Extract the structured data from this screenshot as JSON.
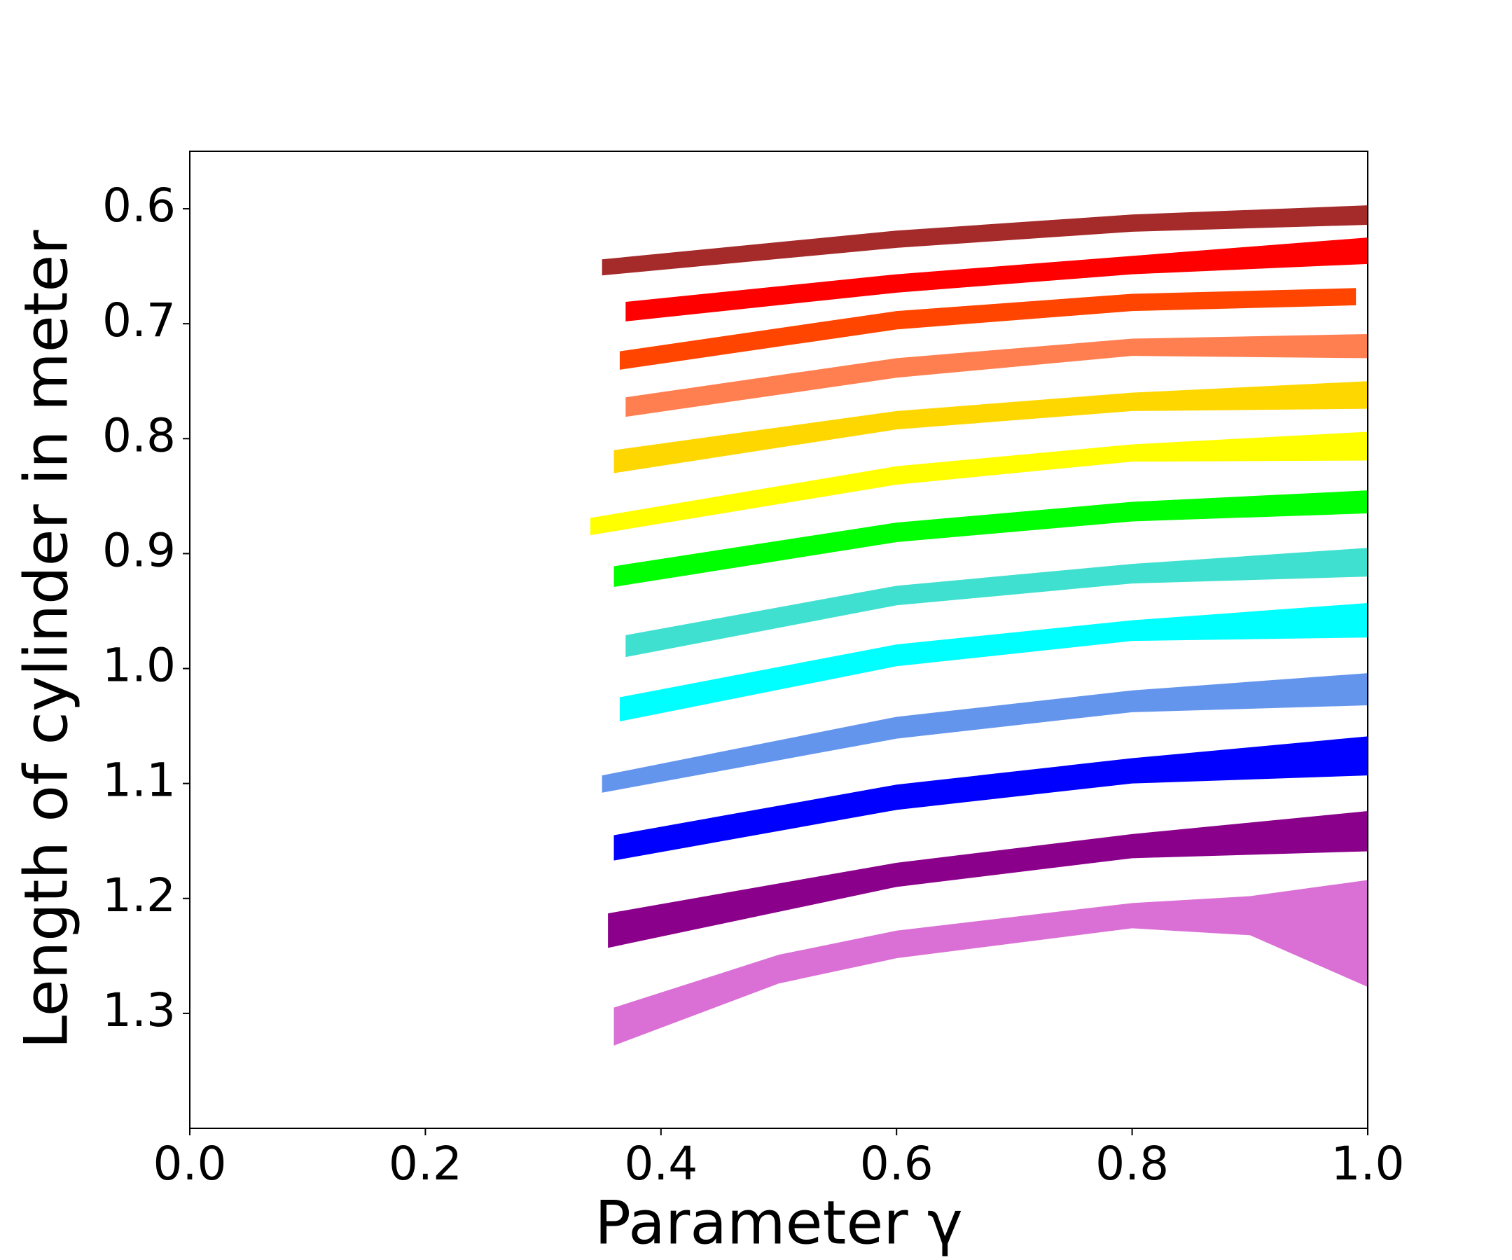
{
  "chart_data": {
    "type": "band",
    "xlabel": "Parameter γ",
    "ylabel": "Length of cylinder in meter",
    "xlim": [
      0,
      1
    ],
    "ylim": [
      1.4,
      0.55
    ],
    "xticks": [
      {
        "value": 0,
        "label": "0.0"
      },
      0.2,
      0.4,
      0.6,
      0.8,
      {
        "value": 1,
        "label": "1.0"
      }
    ],
    "yticks": [
      0.6,
      0.7,
      0.8,
      0.9,
      {
        "value": 1,
        "label": "1.0"
      },
      1.1,
      1.2,
      1.3
    ],
    "series": [
      {
        "color": "#a52a2a",
        "x": [
          0.35,
          0.6,
          0.8,
          1.0
        ],
        "top": [
          0.644,
          0.619,
          0.605,
          0.597
        ],
        "bottom": [
          0.658,
          0.634,
          0.62,
          0.614
        ]
      },
      {
        "color": "#ff0000",
        "x": [
          0.37,
          0.6,
          0.8,
          1.0
        ],
        "top": [
          0.681,
          0.657,
          0.641,
          0.625
        ],
        "bottom": [
          0.698,
          0.673,
          0.657,
          0.648
        ]
      },
      {
        "color": "#ff4500",
        "x": [
          0.365,
          0.6,
          0.8,
          0.99
        ],
        "top": [
          0.724,
          0.689,
          0.674,
          0.669
        ],
        "bottom": [
          0.74,
          0.705,
          0.689,
          0.684
        ]
      },
      {
        "color": "#ff7f50",
        "x": [
          0.37,
          0.6,
          0.8,
          1.0
        ],
        "top": [
          0.764,
          0.73,
          0.713,
          0.709
        ],
        "bottom": [
          0.781,
          0.747,
          0.728,
          0.73
        ]
      },
      {
        "color": "#ffd700",
        "x": [
          0.36,
          0.6,
          0.8,
          1.0
        ],
        "top": [
          0.81,
          0.776,
          0.76,
          0.75
        ],
        "bottom": [
          0.83,
          0.792,
          0.776,
          0.774
        ]
      },
      {
        "color": "#ffff00",
        "x": [
          0.34,
          0.6,
          0.8,
          1.0
        ],
        "top": [
          0.869,
          0.824,
          0.805,
          0.794
        ],
        "bottom": [
          0.884,
          0.84,
          0.82,
          0.819
        ]
      },
      {
        "color": "#00ff00",
        "x": [
          0.36,
          0.6,
          0.8,
          1.0
        ],
        "top": [
          0.911,
          0.873,
          0.855,
          0.845
        ],
        "bottom": [
          0.929,
          0.89,
          0.872,
          0.865
        ]
      },
      {
        "color": "#40e0d0",
        "x": [
          0.37,
          0.6,
          0.8,
          1.0
        ],
        "top": [
          0.971,
          0.928,
          0.909,
          0.895
        ],
        "bottom": [
          0.99,
          0.945,
          0.926,
          0.92
        ]
      },
      {
        "color": "#00ffff",
        "x": [
          0.365,
          0.6,
          0.8,
          1.0
        ],
        "top": [
          1.025,
          0.979,
          0.958,
          0.943
        ],
        "bottom": [
          1.046,
          0.998,
          0.976,
          0.973
        ]
      },
      {
        "color": "#6495ed",
        "x": [
          0.35,
          0.6,
          0.8,
          1.0
        ],
        "top": [
          1.093,
          1.042,
          1.019,
          1.004
        ],
        "bottom": [
          1.108,
          1.061,
          1.038,
          1.032
        ]
      },
      {
        "color": "#0000ff",
        "x": [
          0.36,
          0.6,
          0.8,
          1.0
        ],
        "top": [
          1.145,
          1.101,
          1.078,
          1.059
        ],
        "bottom": [
          1.167,
          1.123,
          1.1,
          1.093
        ]
      },
      {
        "color": "#8b008b",
        "x": [
          0.355,
          0.6,
          0.8,
          1.0
        ],
        "top": [
          1.213,
          1.169,
          1.144,
          1.124
        ],
        "bottom": [
          1.243,
          1.19,
          1.165,
          1.159
        ]
      },
      {
        "color": "#da70d6",
        "x": [
          0.36,
          0.5,
          0.6,
          0.8,
          0.9,
          1.0
        ],
        "top": [
          1.295,
          1.249,
          1.228,
          1.204,
          1.198,
          1.184
        ],
        "bottom": [
          1.328,
          1.274,
          1.252,
          1.226,
          1.232,
          1.277
        ]
      }
    ]
  }
}
